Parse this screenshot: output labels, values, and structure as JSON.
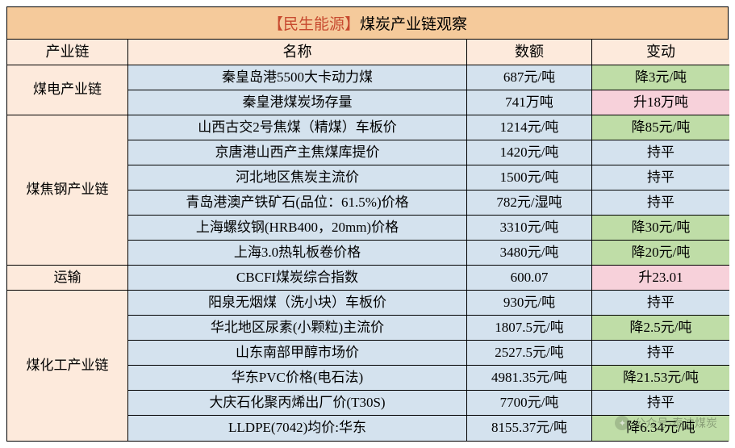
{
  "title": {
    "lead": "【民生能源】",
    "rest": "煤炭产业链观察"
  },
  "headers": {
    "chain": "产业链",
    "name": "名称",
    "amount": "数额",
    "change": "变动"
  },
  "sections": [
    {
      "category": "煤电产业链",
      "rows": [
        {
          "name": "秦皇岛港5500大卡动力煤",
          "amount": "687元/吨",
          "change": "降3元/吨",
          "change_style": "green"
        },
        {
          "name": "秦皇港煤炭场存量",
          "amount": "741万吨",
          "change": "升18万吨",
          "change_style": "pink"
        }
      ]
    },
    {
      "category": "煤焦钢产业链",
      "rows": [
        {
          "name": "山西古交2号焦煤（精煤）车板价",
          "amount": "1214元/吨",
          "change": "降85元/吨",
          "change_style": "green"
        },
        {
          "name": "京唐港山西产主焦煤库提价",
          "amount": "1420元/吨",
          "change": "持平",
          "change_style": "blue"
        },
        {
          "name": "河北地区焦炭主流价",
          "amount": "1500元/吨",
          "change": "持平",
          "change_style": "blue"
        },
        {
          "name": "青岛港澳产铁矿石(品位：61.5%)价格",
          "amount": "782元/湿吨",
          "change": "持平",
          "change_style": "blue"
        },
        {
          "name": "上海螺纹钢(HRB400，20mm)价格",
          "amount": "3310元/吨",
          "change": "降30元/吨",
          "change_style": "green"
        },
        {
          "name": "上海3.0热轧板卷价格",
          "amount": "3480元/吨",
          "change": "降20元/吨",
          "change_style": "green"
        }
      ]
    },
    {
      "category": "运输",
      "rows": [
        {
          "name": "CBCFI煤炭综合指数",
          "amount": "600.07",
          "change": "升23.01",
          "change_style": "pink"
        }
      ]
    },
    {
      "category": "煤化工产业链",
      "rows": [
        {
          "name": "阳泉无烟煤（洗小块）车板价",
          "amount": "930元/吨",
          "change": "持平",
          "change_style": "blue"
        },
        {
          "name": "华北地区尿素(小颗粒)主流价",
          "amount": "1807.5元/吨",
          "change": "降2.5元/吨",
          "change_style": "green"
        },
        {
          "name": "山东南部甲醇市场价",
          "amount": "2527.5元/吨",
          "change": "持平",
          "change_style": "blue"
        },
        {
          "name": "华东PVC价格(电石法)",
          "amount": "4981.35元/吨",
          "change": "降21.53元/吨",
          "change_style": "green"
        },
        {
          "name": "大庆石化聚丙烯出厂价(T30S)",
          "amount": "7700元/吨",
          "change": "持平",
          "change_style": "blue"
        },
        {
          "name": "LLDPE(7042)均价:华东",
          "amount": "8155.37元/吨",
          "change": "降6.34元/吨",
          "change_style": "green"
        }
      ]
    }
  ],
  "watermark": {
    "label": "公众号·泰迪煤炭"
  },
  "colors": {
    "title_bg": "#f5ca9b",
    "header_bg": "#fdeadc",
    "body_blue": "#d4e2ee",
    "change_green": "#bfdda7",
    "change_pink": "#f7d1da",
    "border": "#000000"
  }
}
